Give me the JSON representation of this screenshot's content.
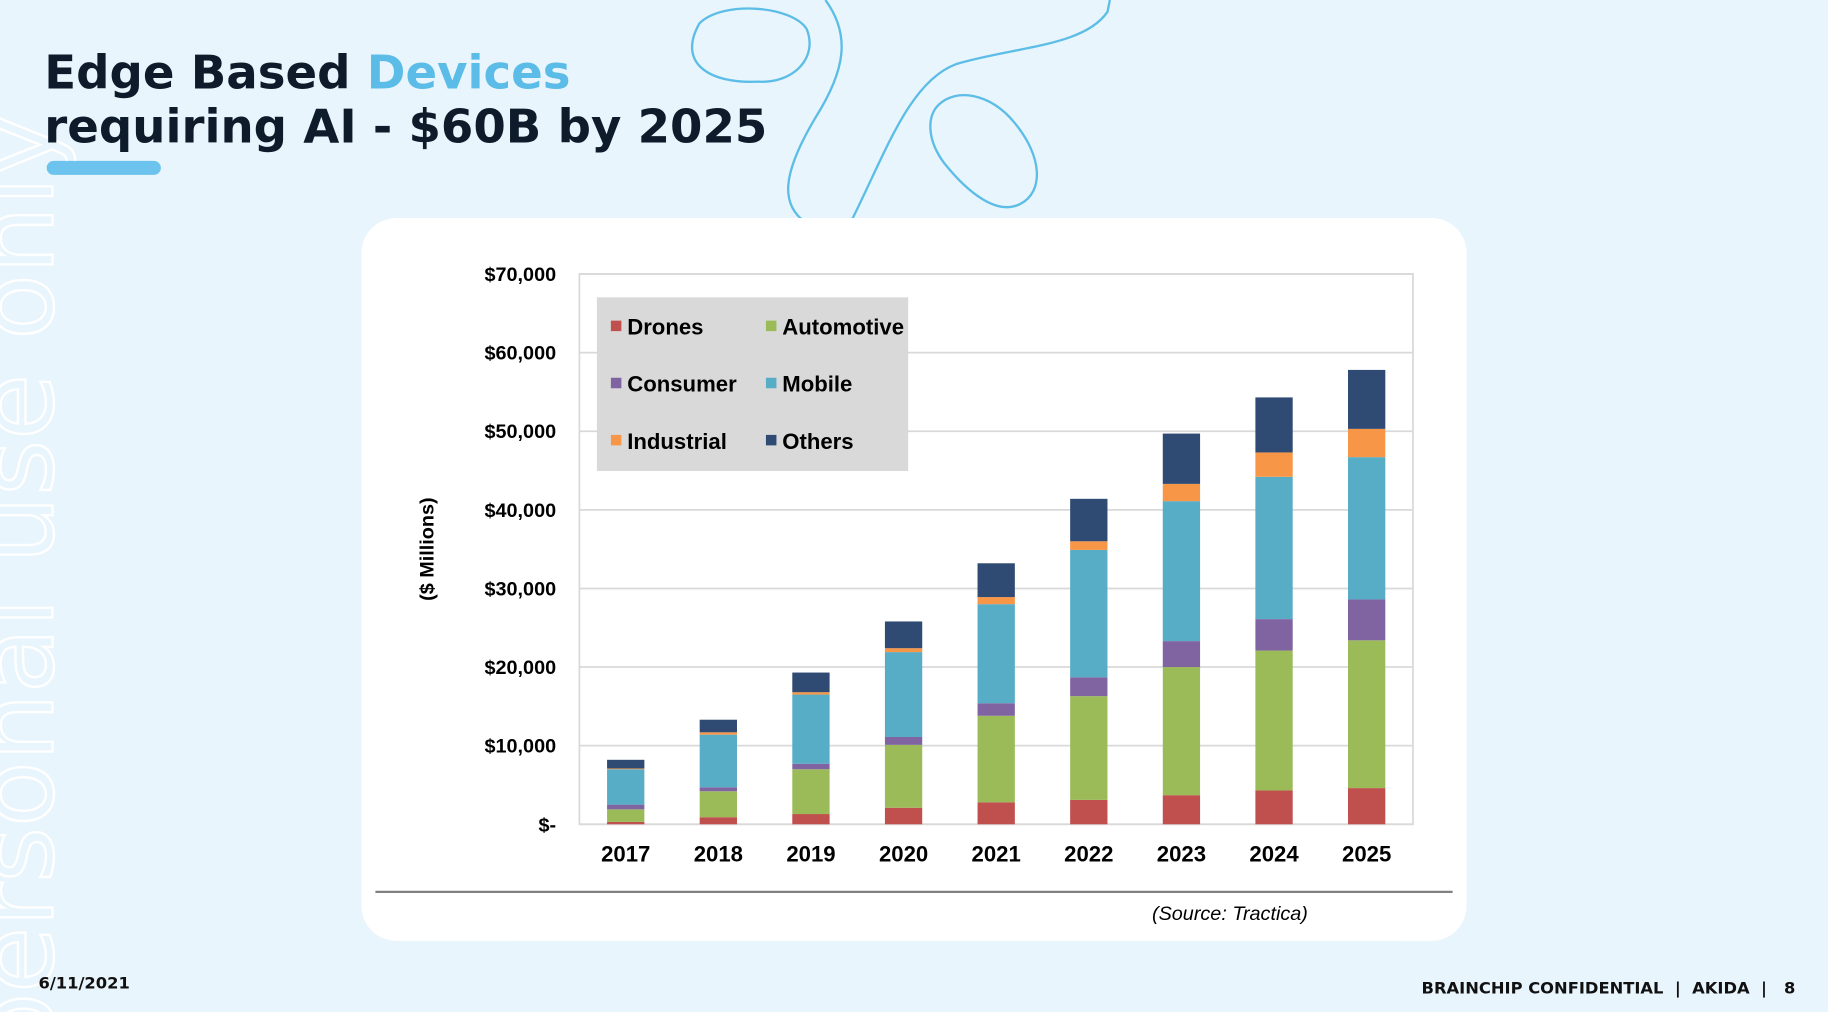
{
  "slide": {
    "title_start": "Edge Based",
    "title_highlight": "Devices",
    "title_line2": "requiring AI - $60B by 2025",
    "watermark": "personal use only",
    "date": "6/11/2021",
    "footer": "BRAINCHIP CONFIDENTIAL  |  AKIDA  |   8"
  },
  "chart_data": {
    "type": "stacked_bar",
    "y_label": "($ Millions)",
    "source": "(Source: Tractica)",
    "categories": [
      "2017",
      "2018",
      "2019",
      "2020",
      "2021",
      "2022",
      "2023",
      "2024",
      "2025"
    ],
    "series": [
      {
        "name": "Drones",
        "color": "#c0504d",
        "values": [
          300,
          900,
          1300,
          2100,
          2800,
          3100,
          3700,
          4300,
          4600
        ]
      },
      {
        "name": "Automotive",
        "color": "#9bbb59",
        "values": [
          1600,
          3300,
          5700,
          8000,
          11000,
          13200,
          16300,
          17800,
          18800
        ]
      },
      {
        "name": "Consumer",
        "color": "#8064a2",
        "values": [
          600,
          500,
          700,
          1000,
          1600,
          2400,
          3300,
          4000,
          5200
        ]
      },
      {
        "name": "Mobile",
        "color": "#57acc6",
        "values": [
          4500,
          6700,
          8800,
          10800,
          12600,
          16200,
          17800,
          18100,
          18100
        ]
      },
      {
        "name": "Industrial",
        "color": "#f79646",
        "values": [
          100,
          300,
          300,
          500,
          900,
          1100,
          2200,
          3100,
          3600
        ]
      },
      {
        "name": "Others",
        "color": "#2f4b73",
        "values": [
          1100,
          1600,
          2500,
          3400,
          4300,
          5400,
          6400,
          7000,
          7500
        ]
      }
    ],
    "ylim": [
      0,
      70000
    ],
    "yticks": [
      {
        "value": 0,
        "label": "$-"
      },
      {
        "value": 10000,
        "label": "$10,000"
      },
      {
        "value": 20000,
        "label": "$20,000"
      },
      {
        "value": 30000,
        "label": "$30,000"
      },
      {
        "value": 40000,
        "label": "$40,000"
      },
      {
        "value": 50000,
        "label": "$50,000"
      },
      {
        "value": 60000,
        "label": "$60,000"
      },
      {
        "value": 70000,
        "label": "$70,000"
      }
    ],
    "grid": true,
    "legend": "top-left"
  }
}
